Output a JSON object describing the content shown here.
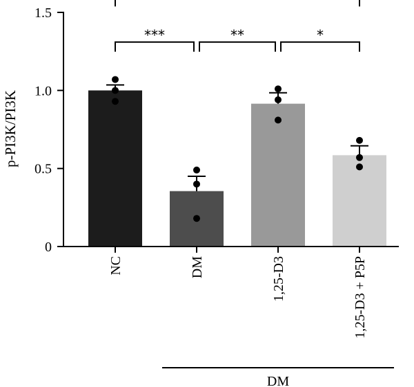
{
  "chart_data": {
    "type": "bar",
    "title": "",
    "xlabel": "",
    "ylabel": "p-PI3K/PI3K",
    "ylim": [
      0,
      1.5
    ],
    "yticks": [
      {
        "value": 0,
        "label": "0"
      },
      {
        "value": 0.5,
        "label": "0.5"
      },
      {
        "value": 1.0,
        "label": "1.0"
      },
      {
        "value": 1.5,
        "label": "1.5"
      }
    ],
    "categories": [
      "NC",
      "DM",
      "1,25-D3",
      "1,25-D3 + P5P"
    ],
    "values": [
      1.0,
      0.355,
      0.915,
      0.585
    ],
    "errors": [
      0.035,
      0.095,
      0.07,
      0.06
    ],
    "points": [
      [
        1.07,
        1.0,
        0.93
      ],
      [
        0.49,
        0.4,
        0.18
      ],
      [
        1.01,
        0.94,
        0.81
      ],
      [
        0.68,
        0.57,
        0.51
      ]
    ],
    "bar_colors": [
      "#1c1c1c",
      "#4d4d4d",
      "#999999",
      "#cfcfcf"
    ],
    "group_label": "DM",
    "group_categories": [
      1,
      2,
      3
    ],
    "significance": [
      {
        "from": 0,
        "to": 3,
        "label": "*",
        "level": 1.6
      },
      {
        "from": 0,
        "to": 1,
        "label": "***",
        "level": 1.31
      },
      {
        "from": 1,
        "to": 2,
        "label": "**",
        "level": 1.31
      },
      {
        "from": 2,
        "to": 3,
        "label": "*",
        "level": 1.31
      }
    ]
  }
}
